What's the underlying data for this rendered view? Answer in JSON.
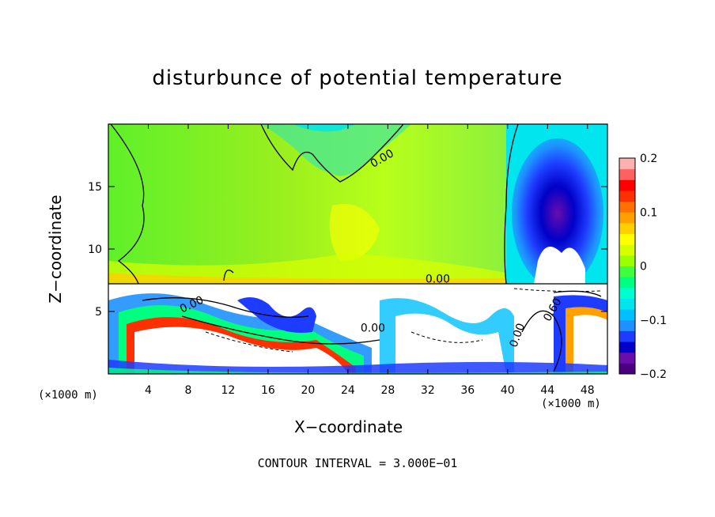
{
  "chart_data": {
    "type": "heatmap",
    "title": "disturbunce of potential temperature",
    "xlabel": "X−coordinate",
    "ylabel": "Z−coordinate",
    "x_unit": "(×1000 m)",
    "x_unit_right": "(×1000 m)",
    "footer": "CONTOUR INTERVAL = 3.000E−01",
    "xlim": [
      0,
      50
    ],
    "ylim": [
      0,
      20
    ],
    "x_ticks": [
      "4",
      "8",
      "12",
      "16",
      "20",
      "24",
      "28",
      "32",
      "36",
      "40",
      "44",
      "48"
    ],
    "y_ticks": [
      "5",
      "10",
      "15"
    ],
    "colorbar": {
      "range": [
        -0.2,
        0.2
      ],
      "labels": [
        "0.2",
        "0.1",
        "0",
        "−0.1",
        "−0.2"
      ],
      "colors": [
        "#4b0082",
        "#6a0dad",
        "#0000c8",
        "#1e3cff",
        "#1e90ff",
        "#00bfff",
        "#00e5ee",
        "#00ffd0",
        "#00ff80",
        "#40ff40",
        "#9aff00",
        "#d8ff00",
        "#ffff00",
        "#ffd000",
        "#ffa000",
        "#ff7000",
        "#ff3000",
        "#ff0000",
        "#ff6060",
        "#ffb0b0"
      ]
    },
    "contour_labels": [
      "0.00",
      "0.00",
      "0.00",
      "0.00",
      "0.00",
      "0.60"
    ]
  }
}
